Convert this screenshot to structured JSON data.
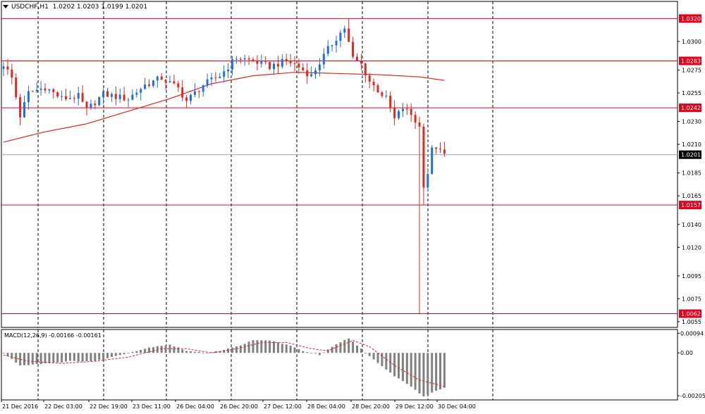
{
  "header": {
    "symbol": "USDCHF,H1",
    "ohlc": "1.0202 1.0203 1.0199 1.0201"
  },
  "macd_header": {
    "label": "MACD(12,26,9) -0.00166 -0.00161"
  },
  "colors": {
    "bull": "#1e6fe6",
    "bear": "#e0281e",
    "level": "#e3001b",
    "ma": "#e0281e",
    "current": "#8fa8c8",
    "macd_hist": "#808080",
    "macd_signal": "#e0281e",
    "grid": "#000000"
  },
  "chart_data": [
    {
      "type": "candlestick",
      "title": "USDCHF,H1",
      "ylim": [
        1.005,
        1.0335
      ],
      "y_ticks": [
        "1.0300",
        "1.0275",
        "1.0255",
        "1.0230",
        "1.0210",
        "1.0185",
        "1.0165",
        "1.0140",
        "1.0120",
        "1.0095",
        "1.0075",
        "1.0055"
      ],
      "x_ticks": [
        "21 Dec 2016",
        "22 Dec 03:00",
        "22 Dec 19:00",
        "23 Dec 11:00",
        "26 Dec 04:00",
        "26 Dec 20:00",
        "27 Dec 12:00",
        "28 Dec 04:00",
        "28 Dec 20:00",
        "29 Dec 12:00",
        "30 Dec 04:00"
      ],
      "levels": [
        {
          "value": 1.032,
          "label": "1.0320"
        },
        {
          "value": 1.0283,
          "label": "1.0283"
        },
        {
          "value": 1.0242,
          "label": "1.0242"
        },
        {
          "value": 1.0157,
          "label": "1.0157"
        },
        {
          "value": 1.0062,
          "label": "1.0062"
        }
      ],
      "current_price": {
        "value": 1.0201,
        "label": "1.0201"
      },
      "moving_average_anchors": [
        [
          0,
          1.0212
        ],
        [
          10,
          1.0221
        ],
        [
          20,
          1.0228
        ],
        [
          30,
          1.0239
        ],
        [
          40,
          1.025
        ],
        [
          50,
          1.0263
        ],
        [
          60,
          1.027
        ],
        [
          70,
          1.0273
        ],
        [
          80,
          1.0272
        ],
        [
          90,
          1.0271
        ],
        [
          100,
          1.0269
        ],
        [
          106,
          1.0266
        ]
      ],
      "price_anchors": [
        [
          0,
          1.028
        ],
        [
          2,
          1.0268
        ],
        [
          4,
          1.0235
        ],
        [
          6,
          1.0255
        ],
        [
          10,
          1.026
        ],
        [
          14,
          1.025
        ],
        [
          18,
          1.0252
        ],
        [
          20,
          1.024
        ],
        [
          24,
          1.0254
        ],
        [
          28,
          1.0251
        ],
        [
          30,
          1.025
        ],
        [
          34,
          1.0262
        ],
        [
          38,
          1.0268
        ],
        [
          42,
          1.0259
        ],
        [
          44,
          1.0248
        ],
        [
          48,
          1.0262
        ],
        [
          52,
          1.027
        ],
        [
          56,
          1.0286
        ],
        [
          60,
          1.0283
        ],
        [
          64,
          1.0278
        ],
        [
          68,
          1.0283
        ],
        [
          70,
          1.028
        ],
        [
          74,
          1.027
        ],
        [
          78,
          1.0293
        ],
        [
          80,
          1.0303
        ],
        [
          82,
          1.0312
        ],
        [
          84,
          1.0285
        ],
        [
          86,
          1.028
        ],
        [
          88,
          1.0265
        ],
        [
          92,
          1.025
        ],
        [
          94,
          1.0232
        ],
        [
          96,
          1.0242
        ],
        [
          98,
          1.0236
        ],
        [
          100,
          1.0225
        ],
        [
          101,
          1.0175
        ],
        [
          102,
          1.0185
        ],
        [
          103,
          1.0205
        ],
        [
          104,
          1.0208
        ],
        [
          105,
          1.0203
        ],
        [
          106,
          1.0201
        ]
      ],
      "extreme_wicks": [
        {
          "bar": 100,
          "low": 1.0062
        },
        {
          "bar": 101,
          "low": 1.0157
        },
        {
          "bar": 83,
          "high": 1.032
        }
      ]
    },
    {
      "type": "macd",
      "title": "MACD(12,26,9)",
      "params": [
        12,
        26,
        9
      ],
      "main": -0.00166,
      "signal": -0.00161,
      "ylim": [
        -0.00225,
        0.00112
      ],
      "y_ticks": [
        "0.00094",
        "0.00",
        "-0.00205"
      ],
      "hist_anchors": [
        [
          0,
          0.0
        ],
        [
          4,
          -0.0006
        ],
        [
          10,
          -0.0005
        ],
        [
          16,
          -0.0004
        ],
        [
          22,
          -0.0004
        ],
        [
          28,
          -0.0001
        ],
        [
          32,
          0.0001
        ],
        [
          36,
          0.0003
        ],
        [
          40,
          0.0004
        ],
        [
          44,
          0.0001
        ],
        [
          48,
          0.0
        ],
        [
          52,
          0.0001
        ],
        [
          56,
          0.0003
        ],
        [
          60,
          0.0006
        ],
        [
          64,
          0.0006
        ],
        [
          68,
          0.0004
        ],
        [
          72,
          0.0001
        ],
        [
          76,
          -0.0001
        ],
        [
          80,
          0.0004
        ],
        [
          83,
          0.0007
        ],
        [
          86,
          0.0002
        ],
        [
          90,
          -0.0005
        ],
        [
          94,
          -0.0011
        ],
        [
          98,
          -0.0016
        ],
        [
          101,
          -0.0021
        ],
        [
          103,
          -0.0019
        ],
        [
          106,
          -0.00166
        ]
      ],
      "signal_anchors": [
        [
          0,
          -0.0001
        ],
        [
          6,
          -0.0004
        ],
        [
          14,
          -0.0005
        ],
        [
          22,
          -0.0004
        ],
        [
          30,
          -0.0002
        ],
        [
          38,
          0.0002
        ],
        [
          44,
          0.0002
        ],
        [
          50,
          0.0
        ],
        [
          56,
          0.0002
        ],
        [
          62,
          0.0005
        ],
        [
          68,
          0.0005
        ],
        [
          74,
          0.0002
        ],
        [
          78,
          0.0001
        ],
        [
          84,
          0.0006
        ],
        [
          88,
          0.0003
        ],
        [
          94,
          -0.0006
        ],
        [
          100,
          -0.0013
        ],
        [
          106,
          -0.00161
        ]
      ]
    }
  ]
}
